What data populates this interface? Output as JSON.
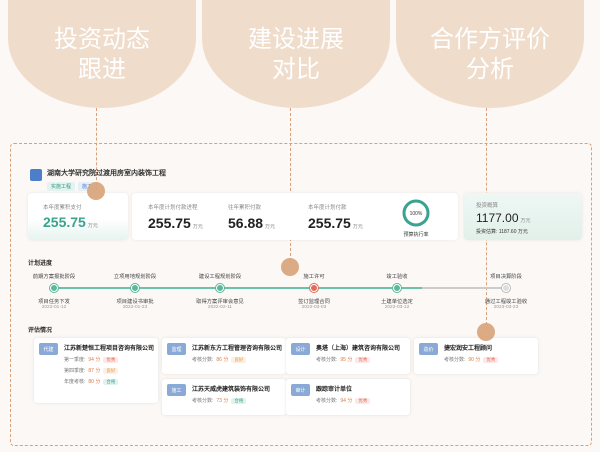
{
  "bubbles": [
    {
      "line1": "投资动态",
      "line2": "跟进"
    },
    {
      "line1": "建设进展",
      "line2": "对比"
    },
    {
      "line1": "合作方评价",
      "line2": "分析"
    }
  ],
  "project": {
    "title": "湖南大学研究院过渡用房室内装饰工程",
    "tags": [
      "实施工程",
      "施工"
    ]
  },
  "annual": {
    "label": "本年度累积支付",
    "value": "255.75",
    "unit": "万元"
  },
  "plan": {
    "stats": [
      {
        "label": "本年度计划付款进程",
        "value": "255.75",
        "unit": "万元"
      },
      {
        "label": "往年累积付款",
        "value": "56.88",
        "unit": "万元"
      },
      {
        "label": "本年度计划付款",
        "value": "255.75",
        "unit": "万元"
      }
    ],
    "ring_value": "100%",
    "ring_label": "预算执行率",
    "ring_fraction": 1.0
  },
  "budget": {
    "label": "投资概算",
    "value": "1177.00",
    "unit": "万元",
    "sub_label": "投资估算:",
    "sub_value": "1187.60 万元"
  },
  "schedule": {
    "title": "计划进度",
    "top": [
      "前期方案报批阶段",
      "立项用地规划阶段",
      "建设工程规划阶段",
      "施工许可",
      "竣工验收",
      "项目决算阶段"
    ],
    "bottom": [
      {
        "label": "项目任务下发",
        "date": "2022-01-12"
      },
      {
        "label": "项目建设书审批",
        "date": "2022-01-23"
      },
      {
        "label": "取得方案评审会意见",
        "date": "2022-02-11"
      },
      {
        "label": "签订监理合同",
        "date": "2022-03-03"
      },
      {
        "label": "土建单位选定",
        "date": "2022-03-12"
      },
      {
        "label": "通过工程竣工验收",
        "date": "2023-03-23"
      }
    ]
  },
  "evaluation": {
    "title": "评估情况",
    "cards": [
      {
        "role": "代建",
        "company": "江苏新楚恒工程项目咨询有限公司",
        "rows": [
          {
            "label": "第一季度:",
            "score": "94 分",
            "badge": "优秀",
            "kind": "good"
          },
          {
            "label": "第四季度:",
            "score": "87 分",
            "badge": "良好",
            "kind": "ok"
          },
          {
            "label": "年度考核:",
            "score": "80 分",
            "badge": "合格",
            "kind": "pass"
          }
        ]
      },
      {
        "role": "监理",
        "company": "江苏新东方工程管理咨询有限公司",
        "rows": [
          {
            "label": "考核分数:",
            "score": "86 分",
            "badge": "良好",
            "kind": "ok"
          }
        ]
      },
      {
        "role": "设计",
        "company": "奥塔（上海）建筑咨询有限公司",
        "rows": [
          {
            "label": "考核分数:",
            "score": "95 分",
            "badge": "优秀",
            "kind": "good"
          }
        ]
      },
      {
        "role": "造价",
        "company": "捷宏润安工程顾问",
        "rows": [
          {
            "label": "考核分数:",
            "score": "90 分",
            "badge": "优秀",
            "kind": "good"
          }
        ]
      },
      {
        "role": "施工",
        "company": "江苏天威虎建筑装饰有限公司",
        "rows": [
          {
            "label": "考核分数:",
            "score": "73 分",
            "badge": "合格",
            "kind": "pass"
          }
        ]
      },
      {
        "role": "审计",
        "company": "跟踪审计单位",
        "rows": [
          {
            "label": "考核分数:",
            "score": "94 分",
            "badge": "优秀",
            "kind": "good"
          }
        ]
      }
    ]
  },
  "colors": {
    "accent": "#3aa38f",
    "bubble": "#efdccb",
    "dash": "#d9a07a"
  }
}
